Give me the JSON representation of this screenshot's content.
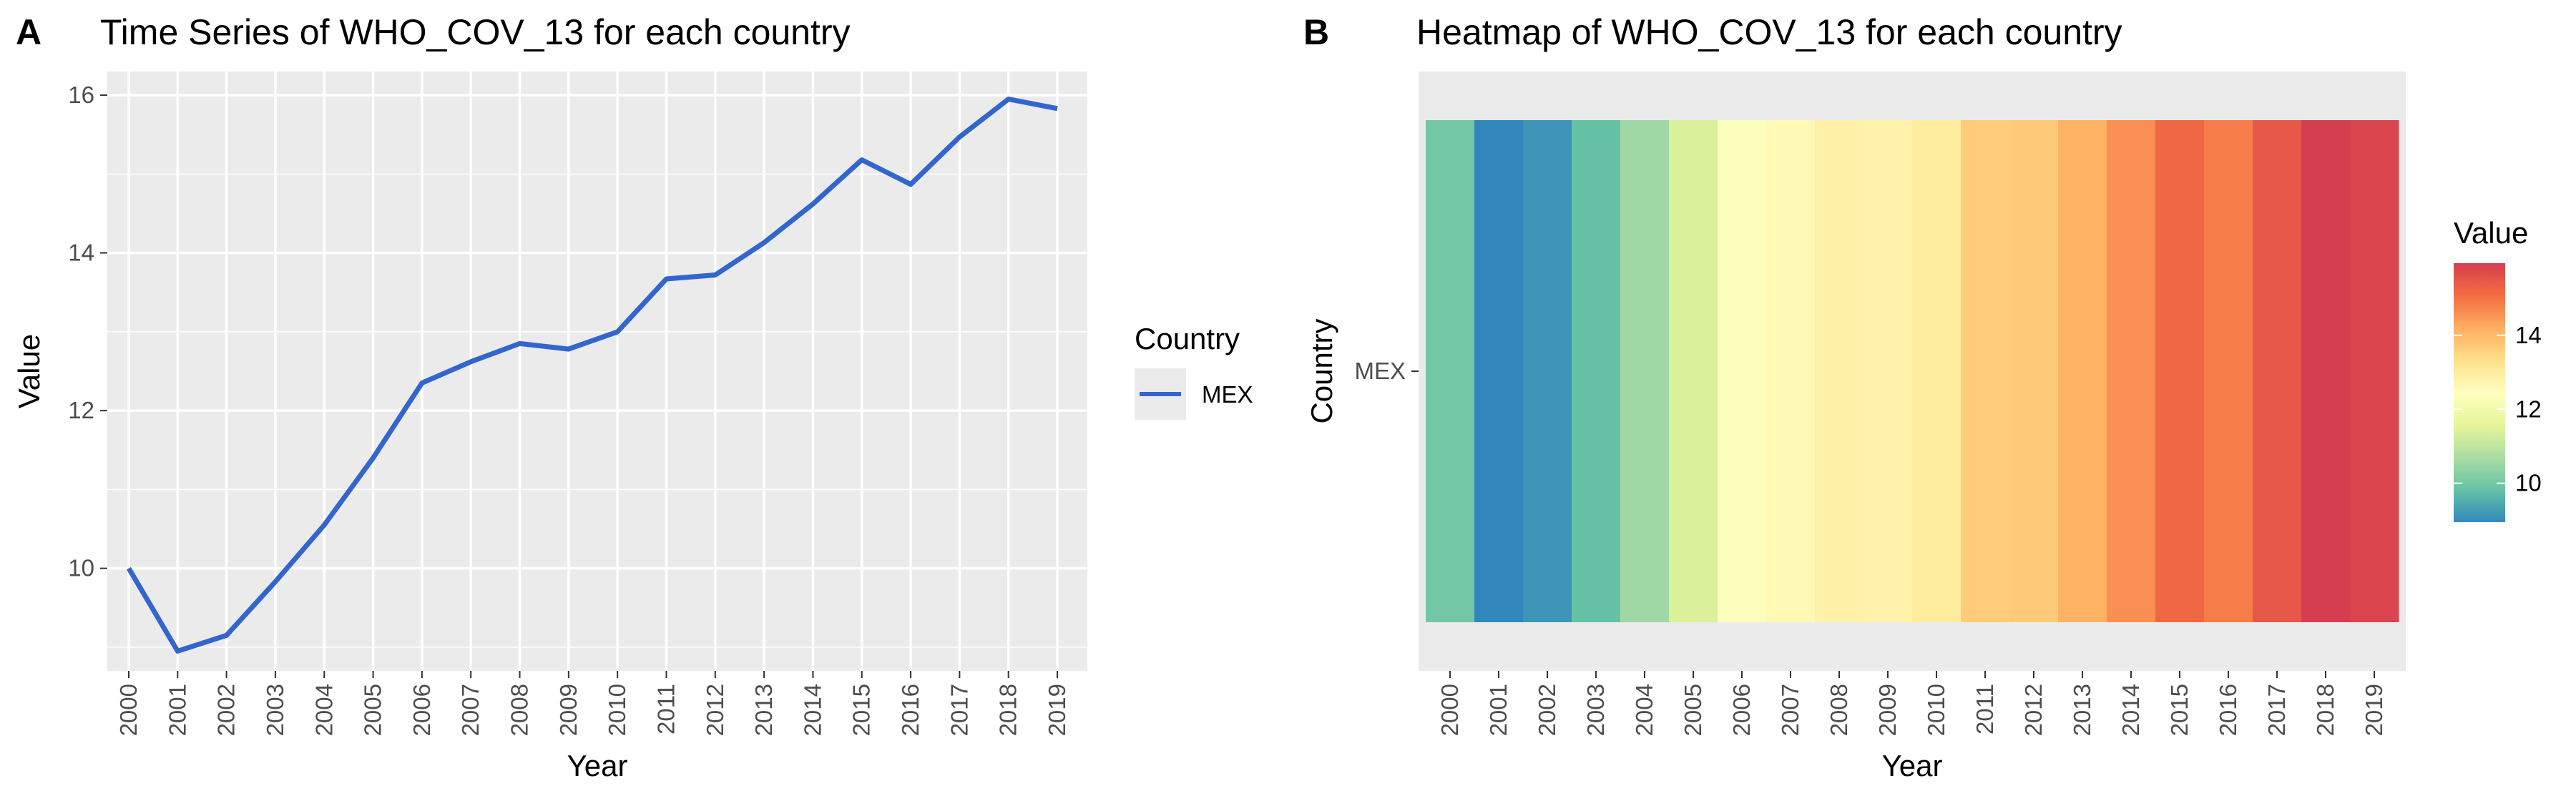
{
  "chart_data": [
    {
      "type": "line",
      "panel_tag": "A",
      "title": "Time Series of WHO_COV_13 for each country",
      "xlabel": "Year",
      "ylabel": "Value",
      "x": [
        "2000",
        "2001",
        "2002",
        "2003",
        "2004",
        "2005",
        "2006",
        "2007",
        "2008",
        "2009",
        "2010",
        "2011",
        "2012",
        "2013",
        "2014",
        "2015",
        "2016",
        "2017",
        "2018",
        "2019"
      ],
      "yticks": [
        10,
        12,
        14,
        16
      ],
      "ylim": [
        8.7,
        16.3
      ],
      "grid": true,
      "legend": {
        "title": "Country",
        "position": "right"
      },
      "series": [
        {
          "name": "MEX",
          "color": "#3366cc",
          "values": [
            10.0,
            8.95,
            9.15,
            9.83,
            10.55,
            11.4,
            12.35,
            12.62,
            12.85,
            12.78,
            13.0,
            13.67,
            13.72,
            14.13,
            14.62,
            15.18,
            14.87,
            15.47,
            15.95,
            15.83
          ]
        }
      ]
    },
    {
      "type": "heatmap",
      "panel_tag": "B",
      "title": "Heatmap of WHO_COV_13 for each country",
      "xlabel": "Year",
      "ylabel": "Country",
      "x": [
        "2000",
        "2001",
        "2002",
        "2003",
        "2004",
        "2005",
        "2006",
        "2007",
        "2008",
        "2009",
        "2010",
        "2011",
        "2012",
        "2013",
        "2014",
        "2015",
        "2016",
        "2017",
        "2018",
        "2019"
      ],
      "y": [
        "MEX"
      ],
      "values": [
        [
          10.0,
          8.95,
          9.15,
          9.83,
          10.55,
          11.4,
          12.35,
          12.62,
          12.85,
          12.78,
          13.0,
          13.67,
          13.72,
          14.13,
          14.62,
          15.18,
          14.87,
          15.47,
          15.95,
          15.83
        ]
      ],
      "colorbar": {
        "title": "Value",
        "ticks": [
          10,
          12,
          14
        ],
        "range": [
          8.95,
          15.95
        ],
        "palette": [
          "#3288bd",
          "#66c2a5",
          "#abdda4",
          "#e6f598",
          "#ffffbf",
          "#fee08b",
          "#fdae61",
          "#f46d43",
          "#d53e4f"
        ]
      }
    }
  ]
}
